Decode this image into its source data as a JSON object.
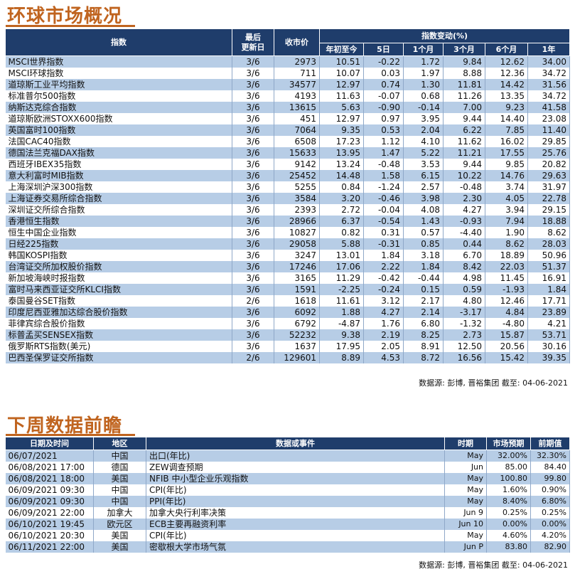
{
  "section1": {
    "title": "环球市场概况",
    "headers": {
      "index": "指数",
      "last_update": "最后\n更新日",
      "close": "收市价",
      "change_group": "指数变动(%)",
      "ytd": "年初至今",
      "d5": "5日",
      "m1": "1个月",
      "m3": "3个月",
      "m6": "6个月",
      "y1": "1年"
    },
    "rows": [
      [
        "MSCI世界指数",
        "3/6",
        "2973",
        "10.51",
        "-0.22",
        "1.72",
        "9.84",
        "12.62",
        "34.00"
      ],
      [
        "MSCI环球指数",
        "3/6",
        "711",
        "10.07",
        "0.03",
        "1.97",
        "8.88",
        "12.36",
        "34.72"
      ],
      [
        "道琼斯工业平均指数",
        "3/6",
        "34577",
        "12.97",
        "0.74",
        "1.30",
        "11.81",
        "14.42",
        "31.56"
      ],
      [
        "标准普尔500指数",
        "3/6",
        "4193",
        "11.63",
        "-0.07",
        "0.68",
        "11.26",
        "13.35",
        "34.72"
      ],
      [
        "纳斯达克综合指数",
        "3/6",
        "13615",
        "5.63",
        "-0.90",
        "-0.14",
        "7.00",
        "9.23",
        "41.58"
      ],
      [
        "道琼斯欧洲STOXX600指数",
        "3/6",
        "451",
        "12.97",
        "0.97",
        "3.95",
        "9.44",
        "14.40",
        "23.08"
      ],
      [
        "英国富时100指数",
        "3/6",
        "7064",
        "9.35",
        "0.53",
        "2.04",
        "6.22",
        "7.85",
        "11.40"
      ],
      [
        "法国CAC40指数",
        "3/6",
        "6508",
        "17.23",
        "1.12",
        "4.10",
        "11.62",
        "16.02",
        "29.85"
      ],
      [
        "德国法兰克福DAX指数",
        "3/6",
        "15633",
        "13.95",
        "1.47",
        "5.22",
        "11.21",
        "17.55",
        "25.76"
      ],
      [
        "西班牙IBEX35指数",
        "3/6",
        "9142",
        "13.24",
        "-0.48",
        "3.53",
        "9.44",
        "9.85",
        "20.82"
      ],
      [
        "意大利富时MIB指数",
        "3/6",
        "25452",
        "14.48",
        "1.58",
        "6.15",
        "10.22",
        "14.76",
        "29.63"
      ],
      [
        "上海深圳沪深300指数",
        "3/6",
        "5255",
        "0.84",
        "-1.24",
        "2.57",
        "-0.48",
        "3.74",
        "31.97"
      ],
      [
        "上海证券交易所综合指数",
        "3/6",
        "3584",
        "3.20",
        "-0.46",
        "3.98",
        "2.30",
        "4.05",
        "22.78"
      ],
      [
        "深圳证交所综合指数",
        "3/6",
        "2393",
        "2.72",
        "-0.04",
        "4.08",
        "4.27",
        "3.94",
        "29.15"
      ],
      [
        "香港恒生指数",
        "3/6",
        "28966",
        "6.37",
        "-0.54",
        "1.43",
        "-0.93",
        "7.94",
        "18.88"
      ],
      [
        "恒生中国企业指数",
        "3/6",
        "10827",
        "0.82",
        "0.31",
        "0.57",
        "-4.40",
        "1.90",
        "8.62"
      ],
      [
        "日经225指数",
        "3/6",
        "29058",
        "5.88",
        "-0.31",
        "0.85",
        "0.44",
        "8.62",
        "28.03"
      ],
      [
        "韩国KOSPI指数",
        "3/6",
        "3247",
        "13.01",
        "1.84",
        "3.18",
        "6.70",
        "18.89",
        "50.96"
      ],
      [
        "台湾证交所加权股价指数",
        "3/6",
        "17246",
        "17.06",
        "2.22",
        "1.84",
        "8.42",
        "22.03",
        "51.37"
      ],
      [
        "新加坡海峡时报指数",
        "3/6",
        "3165",
        "11.29",
        "-0.42",
        "-0.44",
        "4.98",
        "11.45",
        "16.91"
      ],
      [
        "富时马来西亚证交所KLCI指数",
        "3/6",
        "1591",
        "-2.25",
        "-0.24",
        "0.15",
        "0.59",
        "-1.93",
        "1.84"
      ],
      [
        "泰国曼谷SET指数",
        "2/6",
        "1618",
        "11.61",
        "3.12",
        "2.17",
        "4.80",
        "12.46",
        "17.71"
      ],
      [
        "印度尼西亚雅加达综合股价指数",
        "3/6",
        "6092",
        "1.88",
        "4.27",
        "2.14",
        "-3.17",
        "4.84",
        "23.89"
      ],
      [
        "菲律宾综合股价指数",
        "3/6",
        "6792",
        "-4.87",
        "1.76",
        "6.80",
        "-1.32",
        "-4.80",
        "4.21"
      ],
      [
        "标普孟买SENSEX指数",
        "3/6",
        "52232",
        "9.38",
        "2.19",
        "8.25",
        "2.73",
        "15.87",
        "53.71"
      ],
      [
        "俄罗斯RTS指数(美元)",
        "3/6",
        "1637",
        "17.95",
        "2.05",
        "8.91",
        "12.50",
        "20.56",
        "30.16"
      ],
      [
        "巴西圣保罗证交所指数",
        "2/6",
        "129601",
        "8.89",
        "4.53",
        "8.72",
        "16.56",
        "15.42",
        "39.35"
      ]
    ],
    "source": "数据源: 彭博, 晋裕集团 截至: 04-06-2021"
  },
  "section2": {
    "title": "下周数据前瞻",
    "headers": {
      "datetime": "日期及时间",
      "region": "地区",
      "event": "数据或事件",
      "period": "时期",
      "forecast": "市场预期",
      "previous": "前期值"
    },
    "rows": [
      [
        "06/07/2021",
        "中国",
        "出口(年比)",
        "May",
        "32.00%",
        "32.30%"
      ],
      [
        "06/08/2021 17:00",
        "德国",
        "ZEW调查预期",
        "Jun",
        "85.00",
        "84.40"
      ],
      [
        "06/08/2021 18:00",
        "美国",
        "NFIB 中小型企业乐观指数",
        "May",
        "100.80",
        "99.80"
      ],
      [
        "06/09/2021 09:30",
        "中国",
        "CPI(年比)",
        "May",
        "1.60%",
        "0.90%"
      ],
      [
        "06/09/2021 09:30",
        "中国",
        "PPI(年比)",
        "May",
        "8.40%",
        "6.80%"
      ],
      [
        "06/09/2021 22:00",
        "加拿大",
        "加拿大央行利率决策",
        "Jun 9",
        "0.25%",
        "0.25%"
      ],
      [
        "06/10/2021 19:45",
        "欧元区",
        "ECB主要再融资利率",
        "Jun 10",
        "0.00%",
        "0.00%"
      ],
      [
        "06/10/2021 20:30",
        "美国",
        "CPI(年比)",
        "May",
        "4.60%",
        "4.20%"
      ],
      [
        "06/11/2021 22:00",
        "美国",
        "密歇根大学市场气氛",
        "Jun P",
        "83.80",
        "82.90"
      ]
    ],
    "source": "数据源: 彭博, 晋裕集团 截至: 04-06-2021"
  }
}
